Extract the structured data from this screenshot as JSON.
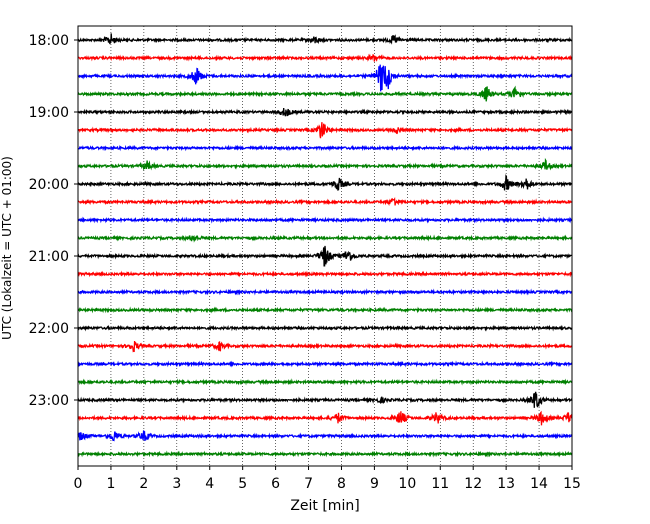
{
  "chart_data": {
    "type": "line",
    "subtype": "helicorder",
    "xlabel": "Zeit  [min]",
    "ylabel": "UTC (Lokalzeit = UTC + 01:00)",
    "xlim": [
      0,
      15
    ],
    "x_ticks": [
      "0",
      "1",
      "2",
      "3",
      "4",
      "5",
      "6",
      "7",
      "8",
      "9",
      "10",
      "11",
      "12",
      "13",
      "14",
      "15"
    ],
    "y_tick_labels": [
      "18:00",
      "19:00",
      "20:00",
      "21:00",
      "22:00",
      "23:00"
    ],
    "grid": "vertical dotted at each minute",
    "trace_colors": [
      "#000000",
      "#ff0000",
      "#0000ff",
      "#008000"
    ],
    "trace_count": 24,
    "minutes_per_trace": 15,
    "series": [
      {
        "start": "18:00",
        "events": [
          {
            "t": 1.0,
            "amp": 0.35
          },
          {
            "t": 7.2,
            "amp": 0.2
          },
          {
            "t": 9.6,
            "amp": 0.25
          }
        ]
      },
      {
        "start": "18:15",
        "events": [
          {
            "t": 9.0,
            "amp": 0.2
          }
        ]
      },
      {
        "start": "18:30",
        "events": [
          {
            "t": 3.6,
            "amp": 0.55
          },
          {
            "t": 9.2,
            "amp": 0.8
          },
          {
            "t": 9.4,
            "amp": 0.7
          }
        ]
      },
      {
        "start": "18:45",
        "events": [
          {
            "t": 12.4,
            "amp": 0.45
          },
          {
            "t": 13.3,
            "amp": 0.4
          }
        ]
      },
      {
        "start": "19:00",
        "events": [
          {
            "t": 6.3,
            "amp": 0.3
          }
        ]
      },
      {
        "start": "19:15",
        "events": [
          {
            "t": 7.4,
            "amp": 0.6
          },
          {
            "t": 9.7,
            "amp": 0.2
          }
        ]
      },
      {
        "start": "19:30",
        "events": []
      },
      {
        "start": "19:45",
        "events": [
          {
            "t": 2.1,
            "amp": 0.25
          },
          {
            "t": 14.2,
            "amp": 0.3
          }
        ]
      },
      {
        "start": "20:00",
        "events": [
          {
            "t": 7.9,
            "amp": 0.4
          },
          {
            "t": 13.0,
            "amp": 0.45
          },
          {
            "t": 13.6,
            "amp": 0.4
          }
        ]
      },
      {
        "start": "20:15",
        "events": [
          {
            "t": 9.6,
            "amp": 0.25
          }
        ]
      },
      {
        "start": "20:30",
        "events": []
      },
      {
        "start": "20:45",
        "events": [
          {
            "t": 3.5,
            "amp": 0.2
          }
        ]
      },
      {
        "start": "21:00",
        "events": [
          {
            "t": 7.5,
            "amp": 0.7
          },
          {
            "t": 8.2,
            "amp": 0.45
          }
        ]
      },
      {
        "start": "21:15",
        "events": []
      },
      {
        "start": "21:30",
        "events": []
      },
      {
        "start": "21:45",
        "events": []
      },
      {
        "start": "22:00",
        "events": []
      },
      {
        "start": "22:15",
        "events": [
          {
            "t": 1.7,
            "amp": 0.3
          },
          {
            "t": 4.3,
            "amp": 0.25
          }
        ]
      },
      {
        "start": "22:30",
        "events": []
      },
      {
        "start": "22:45",
        "events": []
      },
      {
        "start": "23:00",
        "events": [
          {
            "t": 9.2,
            "amp": 0.15
          },
          {
            "t": 13.9,
            "amp": 0.6
          }
        ]
      },
      {
        "start": "23:15",
        "events": [
          {
            "t": 7.9,
            "amp": 0.3
          },
          {
            "t": 9.8,
            "amp": 0.45
          },
          {
            "t": 10.9,
            "amp": 0.35
          },
          {
            "t": 14.1,
            "amp": 0.45
          },
          {
            "t": 14.9,
            "amp": 0.3
          }
        ]
      },
      {
        "start": "23:30",
        "events": [
          {
            "t": 0.1,
            "amp": 0.25
          },
          {
            "t": 1.1,
            "amp": 0.35
          },
          {
            "t": 2.0,
            "amp": 0.3
          }
        ]
      },
      {
        "start": "23:45",
        "events": []
      }
    ]
  }
}
